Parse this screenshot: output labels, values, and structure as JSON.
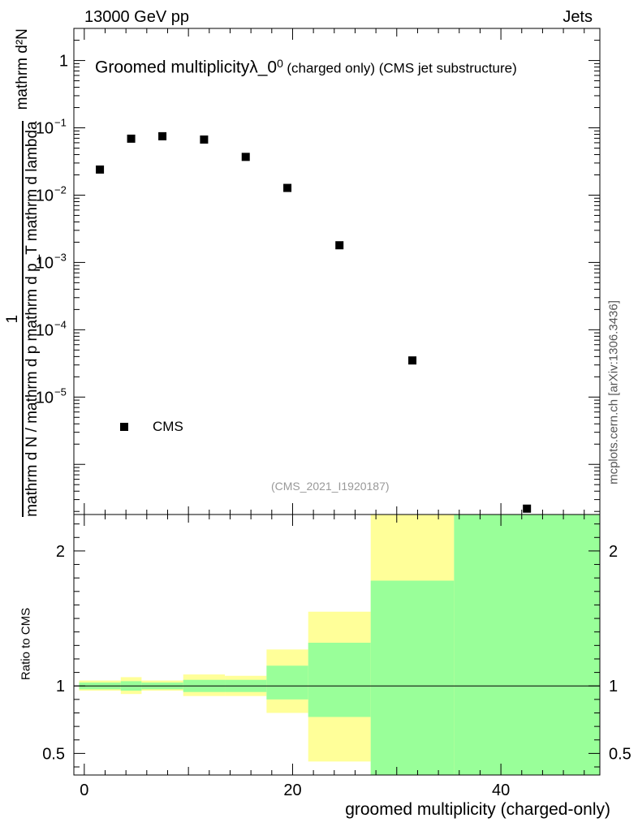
{
  "header": {
    "left": "13000 GeV pp",
    "right": "Jets"
  },
  "side_label": "mcplots.cern.ch [arXiv:1306.3436]",
  "watermark": "(CMS_2021_I1920187)",
  "colors": {
    "band_outer": "#ffff99",
    "band_inner": "#99ff99",
    "marker": "#000000",
    "watermark": "#999999"
  },
  "chart_data": [
    {
      "type": "scatter",
      "title_main": "Groomed multiplicityλ_0",
      "title_sup": "0",
      "title_small": "(charged only) (CMS jet substructure)",
      "ylabel_frac_num": "1",
      "ylabel_frac_den": "mathrm d N / mathrm d p mathrm d p_T mathrm d lambda",
      "ylabel_frac2_num": "mathrm d²N",
      "yscale": "log",
      "ylim": [
        1.8e-07,
        3.0
      ],
      "xlim": [
        -1.0,
        49.5
      ],
      "yticks": [
        {
          "value": 1,
          "label": "1"
        },
        {
          "value": 0.1,
          "label": "10",
          "exp": "−1"
        },
        {
          "value": 0.01,
          "label": "10",
          "exp": "−2"
        },
        {
          "value": 0.001,
          "label": "10",
          "exp": "−3"
        },
        {
          "value": 0.0001,
          "label": "10",
          "exp": "−4"
        },
        {
          "value": 1e-05,
          "label": "10",
          "exp": "−5"
        }
      ],
      "series": [
        {
          "name": "CMS",
          "x": [
            1.5,
            4.5,
            7.5,
            11.5,
            15.5,
            19.5,
            24.5,
            31.5,
            42.5
          ],
          "y": [
            0.024,
            0.069,
            0.075,
            0.067,
            0.037,
            0.0128,
            0.0018,
            3.5e-05,
            2.2e-07
          ]
        }
      ],
      "legend": {
        "label": "CMS",
        "position": "bottom-left"
      }
    },
    {
      "type": "area",
      "ylabel": "Ratio to CMS",
      "xlabel": "groomed multiplicity (charged-only)",
      "xlim": [
        -1.0,
        49.5
      ],
      "ylim": [
        0.34,
        2.27
      ],
      "xticks": [
        0,
        20,
        40
      ],
      "yticks": [
        0.5,
        1,
        2
      ],
      "reference_line": 1.0,
      "bins": [
        {
          "x0": -0.5,
          "x1": 3.5,
          "outer": [
            0.965,
            1.04
          ],
          "inner": [
            0.975,
            1.025
          ]
        },
        {
          "x0": 3.5,
          "x1": 5.5,
          "outer": [
            0.94,
            1.065
          ],
          "inner": [
            0.965,
            1.035
          ]
        },
        {
          "x0": 5.5,
          "x1": 9.5,
          "outer": [
            0.965,
            1.04
          ],
          "inner": [
            0.975,
            1.025
          ]
        },
        {
          "x0": 9.5,
          "x1": 13.5,
          "outer": [
            0.925,
            1.085
          ],
          "inner": [
            0.955,
            1.045
          ]
        },
        {
          "x0": 13.5,
          "x1": 17.5,
          "outer": [
            0.925,
            1.075
          ],
          "inner": [
            0.955,
            1.045
          ]
        },
        {
          "x0": 17.5,
          "x1": 21.5,
          "outer": [
            0.8,
            1.27
          ],
          "inner": [
            0.9,
            1.15
          ]
        },
        {
          "x0": 21.5,
          "x1": 27.5,
          "outer": [
            0.44,
            1.55
          ],
          "inner": [
            0.77,
            1.32
          ]
        },
        {
          "x0": 27.5,
          "x1": 35.5,
          "outer": [
            0.34,
            2.27
          ],
          "inner": [
            0.34,
            1.78
          ]
        },
        {
          "x0": 35.5,
          "x1": 49.5,
          "outer": [
            0.34,
            2.27
          ],
          "inner": [
            0.34,
            2.27
          ]
        }
      ]
    }
  ]
}
